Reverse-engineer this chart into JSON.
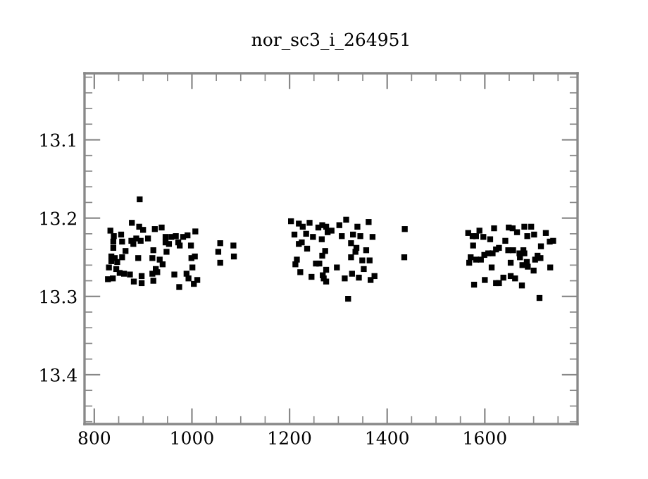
{
  "chart_data": {
    "type": "scatter",
    "title": "nor_sc3_i_264951",
    "marker": "square",
    "grid": false,
    "xlim": [
      780,
      1790
    ],
    "xticks": [
      800,
      1000,
      1200,
      1400,
      1600
    ],
    "ylim": [
      13.463,
      13.015
    ],
    "yticks": [
      13.1,
      13.2,
      13.3,
      13.4
    ],
    "series": [
      {
        "color": "#000000",
        "x": [
          893,
          833,
          877,
          892,
          900,
          924,
          938,
          840,
          855,
          839,
          857,
          876,
          886,
          895,
          910,
          880,
          839,
          946,
          958,
          967,
          982,
          991,
          1007,
          946,
          972,
          953,
          975,
          998,
          921,
          948,
          864,
          835,
          842,
          857,
          890,
          919,
          934,
          999,
          1006,
          835,
          847,
          940,
          830,
          845,
          926,
          1001,
          852,
          861,
          873,
          919,
          929,
          964,
          989,
          828,
          838,
          881,
          897,
          897,
          921,
          993,
          1011,
          1004,
          974,
          1058,
          1085,
          1054,
          1086,
          1058,
          1203,
          1219,
          1227,
          1241,
          1259,
          1267,
          1275,
          1286,
          1302,
          1316,
          1339,
          1362,
          1210,
          1234,
          1248,
          1266,
          1278,
          1307,
          1330,
          1345,
          1370,
          1436,
          1219,
          1225,
          1236,
          1326,
          1337,
          1335,
          1357,
          1273,
          1267,
          1326,
          1215,
          1212,
          1254,
          1261,
          1297,
          1349,
          1364,
          1352,
          1275,
          1222,
          1328,
          1245,
          1268,
          1270,
          1275,
          1313,
          1342,
          1366,
          1374,
          1435,
          1320,
          1566,
          1575,
          1582,
          1589,
          1597,
          1611,
          1619,
          1649,
          1657,
          1666,
          1681,
          1695,
          1687,
          1701,
          1725,
          1642,
          1733,
          1740,
          1576,
          1629,
          1623,
          1715,
          1648,
          1658,
          1679,
          1671,
          1681,
          1607,
          1599,
          1616,
          1571,
          1582,
          1592,
          1672,
          1708,
          1714,
          1568,
          1653,
          1686,
          1703,
          1677,
          1688,
          1614,
          1734,
          1700,
          1638,
          1653,
          1662,
          1600,
          1623,
          1629,
          1578,
          1676,
          1712
        ],
        "values": [
          13.176,
          13.216,
          13.206,
          13.211,
          13.215,
          13.214,
          13.212,
          13.223,
          13.221,
          13.23,
          13.23,
          13.229,
          13.226,
          13.229,
          13.226,
          13.233,
          13.238,
          13.224,
          13.224,
          13.223,
          13.224,
          13.222,
          13.217,
          13.231,
          13.231,
          13.233,
          13.235,
          13.235,
          13.241,
          13.243,
          13.242,
          13.249,
          13.251,
          13.25,
          13.251,
          13.251,
          13.253,
          13.251,
          13.249,
          13.255,
          13.256,
          13.259,
          13.263,
          13.265,
          13.265,
          13.263,
          13.27,
          13.271,
          13.272,
          13.271,
          13.269,
          13.272,
          13.271,
          13.278,
          13.277,
          13.281,
          13.283,
          13.274,
          13.28,
          13.277,
          13.279,
          13.284,
          13.288,
          13.232,
          13.235,
          13.243,
          13.249,
          13.257,
          13.204,
          13.207,
          13.211,
          13.206,
          13.212,
          13.209,
          13.211,
          13.216,
          13.209,
          13.202,
          13.211,
          13.205,
          13.221,
          13.22,
          13.224,
          13.227,
          13.218,
          13.223,
          13.221,
          13.223,
          13.224,
          13.214,
          13.233,
          13.231,
          13.239,
          13.232,
          13.238,
          13.243,
          13.241,
          13.242,
          13.248,
          13.25,
          13.253,
          13.259,
          13.258,
          13.258,
          13.263,
          13.254,
          13.254,
          13.265,
          13.266,
          13.269,
          13.271,
          13.275,
          13.273,
          13.277,
          13.281,
          13.277,
          13.276,
          13.279,
          13.274,
          13.25,
          13.303,
          13.219,
          13.223,
          13.223,
          13.216,
          13.224,
          13.227,
          13.213,
          13.212,
          13.213,
          13.218,
          13.211,
          13.211,
          13.223,
          13.221,
          13.219,
          13.229,
          13.23,
          13.229,
          13.235,
          13.238,
          13.24,
          13.236,
          13.241,
          13.241,
          13.241,
          13.245,
          13.245,
          13.245,
          13.247,
          13.245,
          13.25,
          13.253,
          13.253,
          13.25,
          13.248,
          13.251,
          13.257,
          13.257,
          13.256,
          13.253,
          13.26,
          13.262,
          13.263,
          13.263,
          13.267,
          13.276,
          13.274,
          13.277,
          13.279,
          13.283,
          13.283,
          13.285,
          13.286,
          13.302
        ]
      }
    ]
  }
}
